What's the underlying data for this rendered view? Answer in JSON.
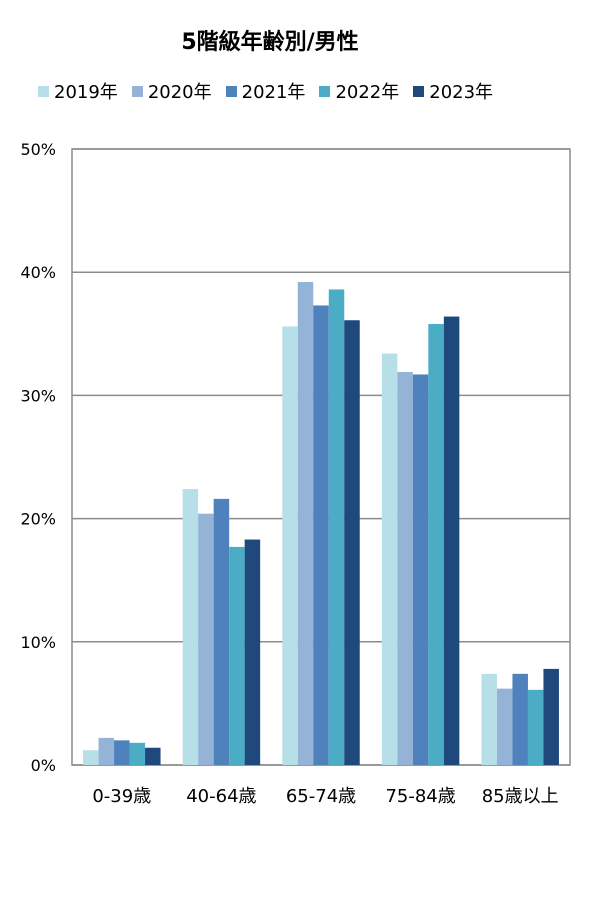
{
  "chart_data": {
    "type": "bar",
    "title": "5階級年齢別/男性",
    "categories": [
      "0-39歳",
      "40-64歳",
      "65-74歳",
      "75-84歳",
      "85歳以上"
    ],
    "series": [
      {
        "name": "2019年",
        "color": "#b7dfe8",
        "values": [
          1.2,
          22.4,
          35.6,
          33.4,
          7.4
        ]
      },
      {
        "name": "2020年",
        "color": "#95b3d7",
        "values": [
          2.2,
          20.4,
          39.2,
          31.9,
          6.2
        ]
      },
      {
        "name": "2021年",
        "color": "#4f81bd",
        "values": [
          2.0,
          21.6,
          37.3,
          31.7,
          7.4
        ]
      },
      {
        "name": "2022年",
        "color": "#4bacc6",
        "values": [
          1.8,
          17.7,
          38.6,
          35.8,
          6.1
        ]
      },
      {
        "name": "2023年",
        "color": "#1f497d",
        "values": [
          1.4,
          18.3,
          36.1,
          36.4,
          7.8
        ]
      }
    ],
    "yticks": [
      "0%",
      "10%",
      "20%",
      "30%",
      "40%",
      "50%"
    ],
    "ylim": [
      0,
      50
    ],
    "grid": true,
    "legend_position": "top"
  }
}
